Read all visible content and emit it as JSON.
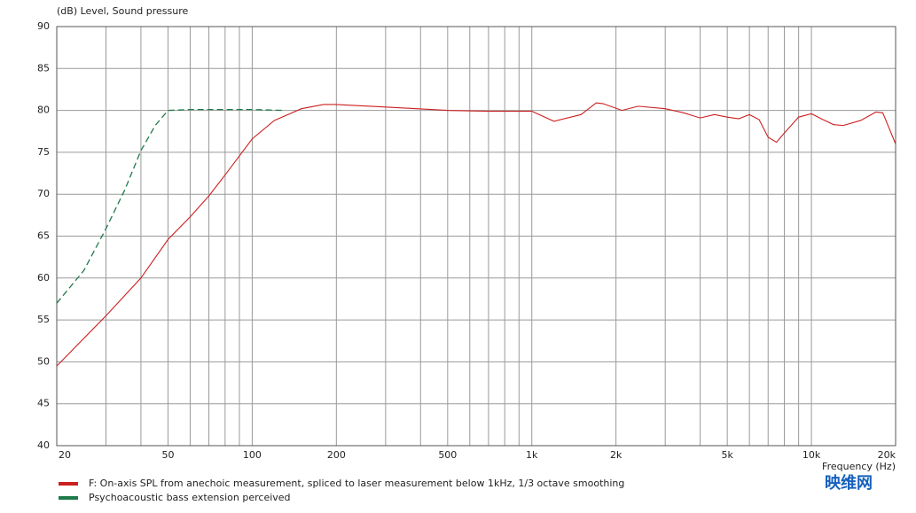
{
  "chart_data": {
    "type": "line",
    "y_label": "(dB)  Level, Sound pressure",
    "x_label": "Frequency  (Hz)",
    "watermark": "映维网",
    "x_log": true,
    "grid": true,
    "xlim": [
      20,
      20000
    ],
    "ylim": [
      40,
      90
    ],
    "xticks": [
      20,
      50,
      100,
      200,
      500,
      {
        "value": 1000,
        "label": "1k"
      },
      {
        "value": 2000,
        "label": "2k"
      },
      {
        "value": 5000,
        "label": "5k"
      },
      {
        "value": 10000,
        "label": "10k"
      },
      {
        "value": 20000,
        "label": "20k"
      }
    ],
    "minor_xticks": [
      30,
      40,
      60,
      70,
      80,
      90,
      300,
      400,
      600,
      700,
      800,
      900,
      3000,
      4000,
      6000,
      7000,
      8000,
      9000
    ],
    "yticks": [
      40,
      45,
      50,
      55,
      60,
      65,
      70,
      75,
      80,
      85,
      90
    ],
    "series": [
      {
        "name": "F: On-axis SPL from anechoic measurement, spliced to laser measurement below 1kHz, 1/3 octave smoothing",
        "color": "#cc1f1f",
        "dashed": false,
        "x": [
          20,
          25,
          30,
          40,
          50,
          60,
          70,
          80,
          100,
          120,
          150,
          180,
          200,
          300,
          500,
          700,
          1000,
          1200,
          1500,
          1700,
          1800,
          2100,
          2400,
          3000,
          3500,
          4000,
          4500,
          5000,
          5500,
          6000,
          6500,
          7000,
          7500,
          8000,
          9000,
          10000,
          11000,
          12000,
          13000,
          15000,
          17000,
          18000,
          20000
        ],
        "values": [
          49.5,
          52.8,
          55.5,
          60,
          64.6,
          67.3,
          69.8,
          72.3,
          76.6,
          78.8,
          80.2,
          80.7,
          80.7,
          80.4,
          80.0,
          79.9,
          79.9,
          78.7,
          79.5,
          80.9,
          80.8,
          80.0,
          80.5,
          80.2,
          79.7,
          79.1,
          79.5,
          79.2,
          79.0,
          79.5,
          78.9,
          76.8,
          76.2,
          77.3,
          79.2,
          79.6,
          78.9,
          78.3,
          78.2,
          78.8,
          79.8,
          79.7,
          76.0
        ]
      },
      {
        "name": "Psychoacoustic bass extension perceived",
        "color": "#1e7a4a",
        "dashed": true,
        "x": [
          20,
          25,
          30,
          35,
          40,
          45,
          50,
          60,
          100,
          130
        ],
        "values": [
          57,
          60.9,
          65.9,
          70.5,
          75.2,
          78.2,
          80,
          80.1,
          80.1,
          80.0
        ]
      }
    ]
  }
}
